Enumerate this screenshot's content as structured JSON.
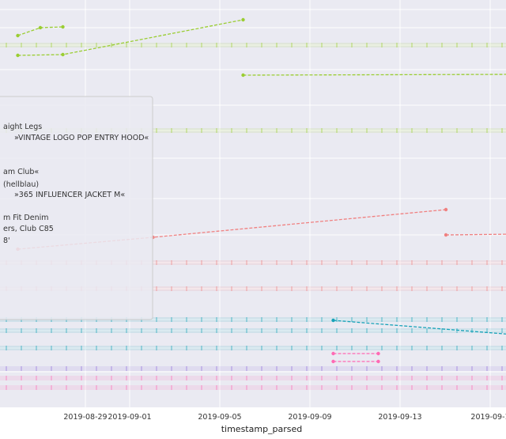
{
  "chart_data": {
    "type": "line",
    "xlabel": "timestamp_parsed",
    "ylabel": "",
    "x_ticks": [
      "2019-08-29",
      "2019-09-01",
      "2019-09-05",
      "2019-09-09",
      "2019-09-13",
      "2019-09-1"
    ],
    "x_range": [
      "2019-08-26",
      "2019-09-17"
    ],
    "grid": true,
    "legend_placement": "center-left",
    "legend": [
      "aight Legs",
      "»VINTAGE LOGO POP ENTRY HOOD«",
      "am Club«",
      "(hellblau)",
      "»365 INFLUENCER JACKET M«",
      "m Fit Denim",
      "ers, Club C85",
      "8'"
    ],
    "series": [
      {
        "color": "#9acd32",
        "x": [
          "2019-08-26",
          "2019-08-27",
          "2019-08-28"
        ],
        "y": [
          470,
          480,
          481
        ]
      },
      {
        "color": "#9acd32",
        "x": [
          "2019-08-26",
          "2019-08-28",
          "2019-09-05"
        ],
        "y": [
          445,
          446,
          490
        ]
      },
      {
        "color": "#9acd32",
        "x": [
          "2019-09-05",
          "2019-09-17"
        ],
        "y": [
          420,
          421
        ]
      },
      {
        "color": "#f08080",
        "x": [
          "2019-08-26",
          "2019-09-01",
          "2019-09-14"
        ],
        "y": [
          200,
          215,
          250
        ]
      },
      {
        "color": "#f08080",
        "x": [
          "2019-09-14",
          "2019-09-17"
        ],
        "y": [
          218,
          219
        ]
      },
      {
        "color": "#17a2b8",
        "x": [
          "2019-09-09",
          "2019-09-17"
        ],
        "y": [
          110,
          92
        ]
      },
      {
        "color": "#ff69b4",
        "x": [
          "2019-09-09",
          "2019-09-11"
        ],
        "y": [
          68,
          68
        ]
      },
      {
        "color": "#ff69b4",
        "x": [
          "2019-09-09",
          "2019-09-11"
        ],
        "y": [
          58,
          58
        ]
      }
    ]
  }
}
